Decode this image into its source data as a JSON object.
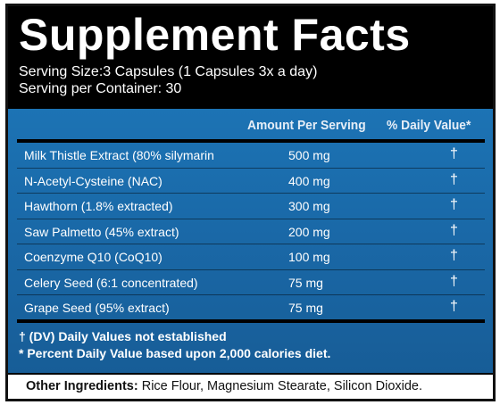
{
  "header": {
    "title": "Supplement Facts",
    "serving_size": "Serving Size:3 Capsules (1 Capsules 3x a day)",
    "servings_per_container": "Serving per Container: 30"
  },
  "table": {
    "columns": {
      "amount": "Amount Per Serving",
      "daily_value": "% Daily Value*"
    },
    "rows": [
      {
        "name": "Milk Thistle Extract (80% silymarin",
        "amount": "500 mg",
        "dv": "†"
      },
      {
        "name": "N-Acetyl-Cysteine (NAC)",
        "amount": "400 mg",
        "dv": "†"
      },
      {
        "name": "Hawthorn (1.8% extracted)",
        "amount": "300 mg",
        "dv": "†"
      },
      {
        "name": "Saw Palmetto (45% extract)",
        "amount": "200 mg",
        "dv": "†"
      },
      {
        "name": "Coenzyme Q10 (CoQ10)",
        "amount": "100 mg",
        "dv": "†"
      },
      {
        "name": "Celery Seed (6:1 concentrated)",
        "amount": "75 mg",
        "dv": "†"
      },
      {
        "name": "Grape Seed (95% extract)",
        "amount": "75 mg",
        "dv": "†"
      }
    ]
  },
  "footnotes": {
    "dv_note": "† (DV) Daily Values not established",
    "calorie_note": "*  Percent Daily Value based upon 2,000 calories diet."
  },
  "other_ingredients": {
    "label": "Other Ingredients:",
    "value": " Rice Flour, Magnesium Stearate, Silicon Dioxide."
  },
  "colors": {
    "header_bg": "#000000",
    "panel_blue": "#1a69a8",
    "text_light": "#ffffff"
  }
}
